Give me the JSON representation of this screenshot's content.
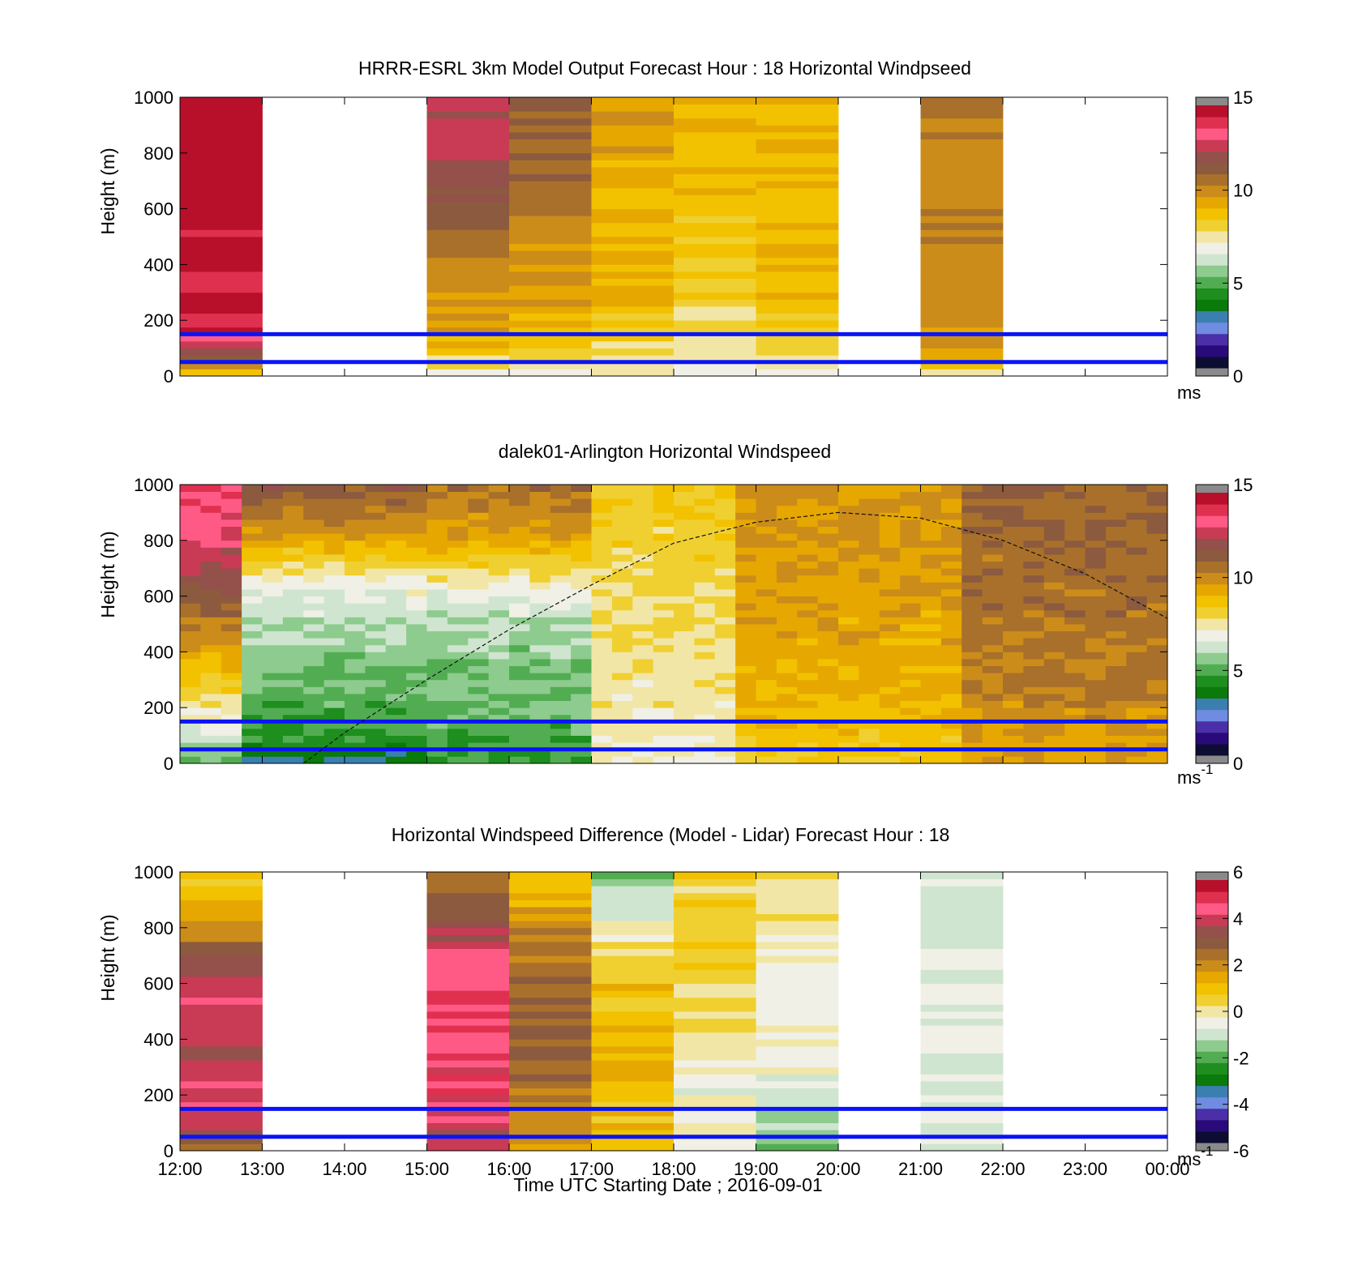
{
  "figure": {
    "xlabel": "Time UTC  Starting Date ; 2016-09-01",
    "x_ticks": [
      "12:00",
      "13:00",
      "14:00",
      "15:00",
      "16:00",
      "17:00",
      "18:00",
      "19:00",
      "20:00",
      "21:00",
      "22:00",
      "23:00",
      "00:00"
    ]
  },
  "colormap": [
    "#0d0d33",
    "#2a0a7a",
    "#4b2fa8",
    "#6f8ce0",
    "#3b7fb0",
    "#0a7a0a",
    "#1e8e1e",
    "#52ad52",
    "#8ecb8e",
    "#cfe5cf",
    "#f0f0e6",
    "#f2e6a6",
    "#f0d030",
    "#f2c200",
    "#e6a800",
    "#cc8c1a",
    "#a8702a",
    "#8c5a3e",
    "#94504a",
    "#c93a55",
    "#ff5a85",
    "#e03050",
    "#b8102a"
  ],
  "chart_data": [
    {
      "type": "heatmap",
      "title": "HRRR-ESRL 3km Model Output   Forecast Hour : 18 Horizontal Windpseed",
      "ylabel": "Height (m)",
      "xlim": [
        12,
        24
      ],
      "ylim": [
        0,
        1000
      ],
      "y_ticks": [
        "0",
        "200",
        "400",
        "600",
        "800",
        "1000"
      ],
      "colorbar": {
        "ticks": [
          "0",
          "5",
          "10",
          "15"
        ],
        "unit": "ms",
        "unit_sup": "",
        "range": [
          0,
          15
        ]
      },
      "reference_lines_m": [
        50,
        150
      ],
      "columns": [
        {
          "t": 12,
          "profile": [
            [
              0,
              9
            ],
            [
              30,
              10
            ],
            [
              60,
              12
            ],
            [
              100,
              12.5
            ],
            [
              150,
              14
            ],
            [
              300,
              14.2
            ],
            [
              500,
              14.5
            ],
            [
              650,
              14.8
            ],
            [
              800,
              15
            ],
            [
              1000,
              14.6
            ]
          ]
        },
        {
          "t": 15,
          "profile": [
            [
              0,
              6
            ],
            [
              30,
              7.5
            ],
            [
              80,
              8.5
            ],
            [
              150,
              9.5
            ],
            [
              300,
              10
            ],
            [
              500,
              11
            ],
            [
              700,
              12
            ],
            [
              850,
              12.5
            ],
            [
              1000,
              12.8
            ]
          ]
        },
        {
          "t": 16,
          "profile": [
            [
              0,
              7
            ],
            [
              60,
              8.2
            ],
            [
              150,
              9
            ],
            [
              300,
              9.5
            ],
            [
              500,
              10
            ],
            [
              700,
              10.8
            ],
            [
              850,
              11.2
            ],
            [
              1000,
              11.5
            ]
          ]
        },
        {
          "t": 17,
          "profile": [
            [
              0,
              7
            ],
            [
              80,
              8
            ],
            [
              150,
              8.5
            ],
            [
              300,
              9
            ],
            [
              600,
              9.3
            ],
            [
              1000,
              9.5
            ]
          ]
        },
        {
          "t": 18,
          "profile": [
            [
              0,
              7
            ],
            [
              100,
              7.5
            ],
            [
              150,
              8
            ],
            [
              300,
              8.3
            ],
            [
              600,
              8.8
            ],
            [
              1000,
              9
            ]
          ]
        },
        {
          "t": 19,
          "profile": [
            [
              0,
              7
            ],
            [
              100,
              8
            ],
            [
              200,
              8.8
            ],
            [
              400,
              9
            ],
            [
              1000,
              9.3
            ]
          ]
        },
        {
          "t": 21,
          "profile": [
            [
              0,
              7
            ],
            [
              60,
              9.5
            ],
            [
              200,
              10
            ],
            [
              600,
              10.2
            ],
            [
              1000,
              10.3
            ]
          ]
        }
      ],
      "column_hours": 1
    },
    {
      "type": "heatmap",
      "title": "dalek01-Arlington  Horizontal Windspeed",
      "ylabel": "Height (m)",
      "xlim": [
        12,
        24
      ],
      "ylim": [
        0,
        1000
      ],
      "y_ticks": [
        "0",
        "200",
        "400",
        "600",
        "800",
        "1000"
      ],
      "colorbar": {
        "ticks": [
          "0",
          "5",
          "10",
          "15"
        ],
        "unit": "ms",
        "unit_sup": "-1",
        "range": [
          0,
          15
        ]
      },
      "reference_lines_m": [
        50,
        150
      ],
      "column_hours": 0.25,
      "columns_range": [
        12,
        23.75
      ],
      "boundary_layer_height_m": [
        [
          13.5,
          0
        ],
        [
          14,
          110
        ],
        [
          15,
          300
        ],
        [
          16,
          480
        ],
        [
          17,
          640
        ],
        [
          18,
          790
        ],
        [
          19,
          865
        ],
        [
          20,
          900
        ],
        [
          21,
          880
        ],
        [
          22,
          800
        ],
        [
          23,
          680
        ],
        [
          24,
          520
        ]
      ],
      "regimes": [
        {
          "t0": 12,
          "t1": 12.75,
          "profile": [
            [
              0,
              5
            ],
            [
              100,
              6.5
            ],
            [
              200,
              7.5
            ],
            [
              400,
              9.5
            ],
            [
              600,
              11.5
            ],
            [
              800,
              13
            ],
            [
              1000,
              14
            ]
          ]
        },
        {
          "t0": 12.75,
          "t1": 15,
          "profile": [
            [
              0,
              3
            ],
            [
              100,
              4.5
            ],
            [
              300,
              5.2
            ],
            [
              500,
              6
            ],
            [
              650,
              7
            ],
            [
              800,
              9.5
            ],
            [
              1000,
              11.5
            ]
          ]
        },
        {
          "t0": 15,
          "t1": 17,
          "profile": [
            [
              0,
              4.5
            ],
            [
              150,
              5
            ],
            [
              400,
              5.5
            ],
            [
              600,
              6.5
            ],
            [
              800,
              9.5
            ],
            [
              1000,
              10.8
            ]
          ]
        },
        {
          "t0": 17,
          "t1": 18.75,
          "profile": [
            [
              0,
              7
            ],
            [
              200,
              7.5
            ],
            [
              500,
              7.8
            ],
            [
              700,
              8
            ],
            [
              1000,
              8.5
            ]
          ]
        },
        {
          "t0": 18.75,
          "t1": 21.5,
          "profile": [
            [
              0,
              8.5
            ],
            [
              300,
              9.3
            ],
            [
              600,
              9.6
            ],
            [
              1000,
              10
            ]
          ]
        },
        {
          "t0": 21.5,
          "t1": 24,
          "profile": [
            [
              0,
              9.5
            ],
            [
              300,
              10.5
            ],
            [
              600,
              10.8
            ],
            [
              1000,
              11
            ]
          ]
        }
      ]
    },
    {
      "type": "heatmap",
      "title": "Horizontal Windspeed Difference (Model - Lidar) Forecast Hour : 18",
      "ylabel": "Height (m)",
      "xlim": [
        12,
        24
      ],
      "ylim": [
        0,
        1000
      ],
      "y_ticks": [
        "0",
        "200",
        "400",
        "600",
        "800",
        "1000"
      ],
      "colorbar": {
        "ticks": [
          "-6",
          "-4",
          "-2",
          "0",
          "2",
          "4",
          "6"
        ],
        "unit": "ms",
        "unit_sup": "-1",
        "range": [
          -6,
          6
        ]
      },
      "reference_lines_m": [
        50,
        150
      ],
      "column_hours": 1,
      "columns": [
        {
          "t": 12,
          "profile": [
            [
              0,
              3
            ],
            [
              100,
              4.5
            ],
            [
              200,
              4.3
            ],
            [
              400,
              3.8
            ],
            [
              600,
              4.5
            ],
            [
              700,
              3
            ],
            [
              850,
              1.5
            ],
            [
              1000,
              0.5
            ]
          ]
        },
        {
          "t": 15,
          "profile": [
            [
              0,
              3.5
            ],
            [
              100,
              4.5
            ],
            [
              300,
              4.8
            ],
            [
              500,
              5
            ],
            [
              700,
              4.8
            ],
            [
              800,
              3.5
            ],
            [
              1000,
              2.5
            ]
          ]
        },
        {
          "t": 16,
          "profile": [
            [
              0,
              2
            ],
            [
              200,
              2.3
            ],
            [
              400,
              3
            ],
            [
              600,
              2.6
            ],
            [
              800,
              2.2
            ],
            [
              1000,
              1
            ]
          ]
        },
        {
          "t": 17,
          "profile": [
            [
              0,
              1
            ],
            [
              300,
              1.2
            ],
            [
              600,
              1
            ],
            [
              700,
              0.3
            ],
            [
              800,
              -0.5
            ],
            [
              1000,
              -2
            ]
          ]
        },
        {
          "t": 18,
          "profile": [
            [
              0,
              -0.2
            ],
            [
              200,
              -0.5
            ],
            [
              400,
              0.2
            ],
            [
              700,
              0.6
            ],
            [
              1000,
              0.5
            ]
          ]
        },
        {
          "t": 19,
          "profile": [
            [
              0,
              -2
            ],
            [
              150,
              -1
            ],
            [
              300,
              -0.5
            ],
            [
              600,
              -0.3
            ],
            [
              1000,
              0.2
            ]
          ]
        },
        {
          "t": 21,
          "profile": [
            [
              0,
              -1
            ],
            [
              300,
              -0.8
            ],
            [
              600,
              -0.6
            ],
            [
              1000,
              -1.2
            ]
          ]
        }
      ]
    }
  ]
}
